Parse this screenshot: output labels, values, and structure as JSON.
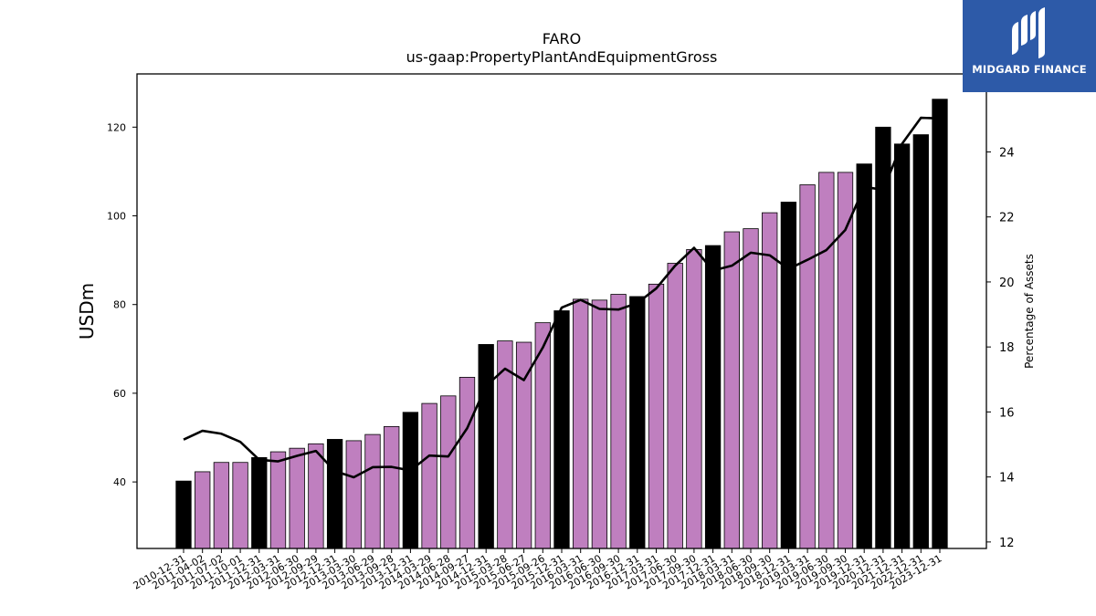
{
  "brand": {
    "name": "MIDGARD FINANCE",
    "color": "#2d5aa8",
    "icon": "midgard-logo-icon"
  },
  "chart_data": {
    "type": "bar",
    "title": "FARO",
    "subtitle": "us-gaap:PropertyPlantAndEquipmentGross",
    "ylabel": "USDm",
    "y2label": "Percentage of Assets",
    "ylim": [
      25,
      132
    ],
    "y2lim": [
      11.8,
      26.4
    ],
    "yticks": [
      40,
      60,
      80,
      100,
      120
    ],
    "y2ticks": [
      12,
      14,
      16,
      18,
      20,
      22,
      24
    ],
    "colors": {
      "annual": "#000000",
      "quarterly": "#bf7fbf",
      "line": "#000000"
    },
    "categories": [
      "2010-12-31",
      "2011-04-02",
      "2011-07-02",
      "2011-10-01",
      "2011-12-31",
      "2012-03-31",
      "2012-06-30",
      "2012-09-29",
      "2012-12-31",
      "2013-03-30",
      "2013-06-29",
      "2013-09-28",
      "2013-12-31",
      "2014-03-29",
      "2014-06-28",
      "2014-09-27",
      "2014-12-31",
      "2015-03-28",
      "2015-06-27",
      "2015-09-26",
      "2015-12-31",
      "2016-03-31",
      "2016-06-30",
      "2016-09-30",
      "2016-12-31",
      "2017-03-31",
      "2017-06-30",
      "2017-09-30",
      "2017-12-31",
      "2018-03-31",
      "2018-06-30",
      "2018-09-30",
      "2018-12-31",
      "2019-03-31",
      "2019-06-30",
      "2019-09-30",
      "2019-12-31",
      "2020-12-31",
      "2021-12-31",
      "2022-12-31",
      "2023-12-31"
    ],
    "series": [
      {
        "kind": "bar",
        "values": [
          40.2,
          42.3,
          44.4,
          44.4,
          45.5,
          46.8,
          47.6,
          48.6,
          49.6,
          49.3,
          50.7,
          52.5,
          55.7,
          57.7,
          59.4,
          63.6,
          71.0,
          71.8,
          71.5,
          75.9,
          78.6,
          81.2,
          81.0,
          82.3,
          81.8,
          84.6,
          89.3,
          92.4,
          93.3,
          96.4,
          97.1,
          100.7,
          103.1,
          107.0,
          109.8,
          109.8,
          111.7,
          120.0,
          116.2,
          118.3,
          126.3
        ],
        "annual": [
          true,
          false,
          false,
          false,
          true,
          false,
          false,
          false,
          true,
          false,
          false,
          false,
          true,
          false,
          false,
          false,
          true,
          false,
          false,
          false,
          true,
          false,
          false,
          false,
          true,
          false,
          false,
          false,
          true,
          false,
          false,
          false,
          true,
          false,
          false,
          false,
          true,
          true,
          true,
          true,
          true
        ]
      },
      {
        "kind": "line",
        "axis": "right",
        "values": [
          15.15,
          15.42,
          15.33,
          15.08,
          14.53,
          14.48,
          14.65,
          14.8,
          14.18,
          13.99,
          14.3,
          14.31,
          14.2,
          14.66,
          14.63,
          15.5,
          16.8,
          17.33,
          16.98,
          17.98,
          19.21,
          19.45,
          19.17,
          19.15,
          19.35,
          19.8,
          20.5,
          21.05,
          20.35,
          20.5,
          20.9,
          20.82,
          20.4,
          20.68,
          20.98,
          21.6,
          22.92,
          22.84,
          24.25,
          25.05,
          25.03
        ]
      }
    ]
  }
}
